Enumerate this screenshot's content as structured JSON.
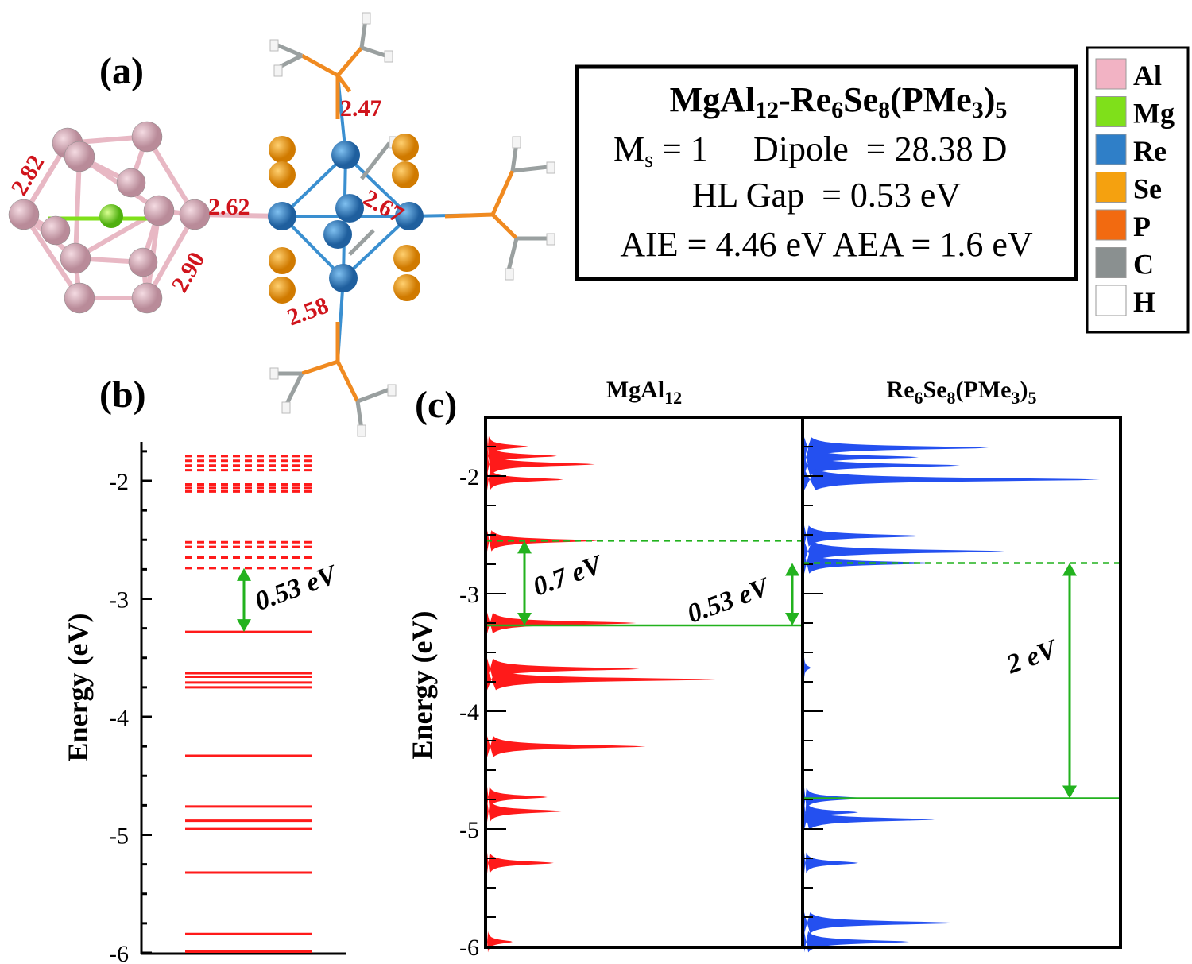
{
  "panel_labels": {
    "a": "(a)",
    "b": "(b)",
    "c": "(c)"
  },
  "bond_lengths": [
    "2.82",
    "2.62",
    "2.90",
    "2.47",
    "2.67",
    "2.58"
  ],
  "info_box": {
    "title": [
      {
        "t": "MgAl",
        "sub": false
      },
      {
        "t": "12",
        "sub": true
      },
      {
        "t": "-Re",
        "sub": false
      },
      {
        "t": "6",
        "sub": true
      },
      {
        "t": "Se",
        "sub": false
      },
      {
        "t": "8",
        "sub": true
      },
      {
        "t": "(PMe",
        "sub": false
      },
      {
        "t": "3",
        "sub": true
      },
      {
        "t": ")",
        "sub": false
      },
      {
        "t": "5",
        "sub": true
      }
    ],
    "ms_label": "M",
    "ms_sub": "s",
    "ms_value": " = 1",
    "dipole": "Dipole  = 28.38 D",
    "hl_gap": "HL Gap  = 0.53 eV",
    "aie_aea": "AIE = 4.46 eV AEA = 1.6 eV"
  },
  "legend": [
    {
      "label": "Al",
      "color": "#f2b3c4"
    },
    {
      "label": "Mg",
      "color": "#7fe01a"
    },
    {
      "label": "Re",
      "color": "#2f7fc8"
    },
    {
      "label": "Se",
      "color": "#f5a10f"
    },
    {
      "label": "P",
      "color": "#f26a10"
    },
    {
      "label": "C",
      "color": "#8a9090"
    },
    {
      "label": "H",
      "color": "#ffffff"
    }
  ],
  "colors": {
    "levels": "#ff1a1a",
    "dos_mgal12": "#ff1a1a",
    "dos_re6se8": "#2450f0",
    "gap_arrows": "#22b21e",
    "bond_labels": "#d0141c"
  },
  "chart_data": [
    {
      "type": "energy-level diagram",
      "panel": "(b)",
      "ylabel": "Energy (eV)",
      "ylim": [
        -6,
        -1.7
      ],
      "yticks": [
        "-2",
        "-3",
        "-4",
        "-5",
        "-6"
      ],
      "unoccupied_levels_dashed": [
        -1.79,
        -1.83,
        -1.87,
        -1.91,
        -2.03,
        -2.06,
        -2.09,
        -2.52,
        -2.56,
        -2.65,
        -2.74
      ],
      "occupied_levels_solid": [
        -3.28,
        -3.63,
        -3.66,
        -3.71,
        -3.75,
        -4.33,
        -4.76,
        -4.88,
        -4.95,
        -5.32,
        -5.84,
        -5.99
      ],
      "annotation": {
        "text": "0.53 eV",
        "from": -2.74,
        "to": -3.28
      }
    },
    {
      "type": "area",
      "panel": "(c)",
      "ylabel": "Energy (eV)",
      "ylim": [
        -6,
        -1.5
      ],
      "yticks": [
        "-2",
        "-3",
        "-4",
        "-5",
        "-6"
      ],
      "subplots": [
        {
          "title": [
            {
              "t": "MgAl",
              "sub": false
            },
            {
              "t": "12",
              "sub": true
            }
          ],
          "series_color": "#ff1a1a",
          "peaks": [
            {
              "energy": -1.75,
              "dos": 0.13
            },
            {
              "energy": -1.83,
              "dos": 0.22
            },
            {
              "energy": -1.9,
              "dos": 0.34
            },
            {
              "energy": -2.03,
              "dos": 0.24
            },
            {
              "energy": -2.55,
              "dos": 0.35
            },
            {
              "energy": -3.25,
              "dos": 0.47
            },
            {
              "energy": -3.64,
              "dos": 0.48
            },
            {
              "energy": -3.73,
              "dos": 0.72
            },
            {
              "energy": -4.3,
              "dos": 0.5
            },
            {
              "energy": -4.73,
              "dos": 0.19
            },
            {
              "energy": -4.85,
              "dos": 0.24
            },
            {
              "energy": -5.29,
              "dos": 0.21
            },
            {
              "energy": -5.96,
              "dos": 0.08
            }
          ],
          "lumo": -2.55,
          "homo": -3.27,
          "annotations": [
            {
              "text": "0.7 eV",
              "from": -2.55,
              "to": -3.27
            },
            {
              "text": "0.53 eV",
              "from": -2.74,
              "to": -3.27
            }
          ]
        },
        {
          "title": [
            {
              "t": "Re",
              "sub": false
            },
            {
              "t": "6",
              "sub": true
            },
            {
              "t": "Se",
              "sub": false
            },
            {
              "t": "8",
              "sub": true
            },
            {
              "t": "(PMe",
              "sub": false
            },
            {
              "t": "3",
              "sub": true
            },
            {
              "t": ")",
              "sub": false
            },
            {
              "t": "5",
              "sub": true
            }
          ],
          "series_color": "#2450f0",
          "peaks": [
            {
              "energy": -1.76,
              "dos": 0.58
            },
            {
              "energy": -1.84,
              "dos": 0.36
            },
            {
              "energy": -1.91,
              "dos": 0.49
            },
            {
              "energy": -2.03,
              "dos": 0.93
            },
            {
              "energy": -2.51,
              "dos": 0.37
            },
            {
              "energy": -2.64,
              "dos": 0.63
            },
            {
              "energy": -2.74,
              "dos": 0.41
            },
            {
              "energy": -3.63,
              "dos": 0.02
            },
            {
              "energy": -4.74,
              "dos": 0.19
            },
            {
              "energy": -4.86,
              "dos": 0.17
            },
            {
              "energy": -4.92,
              "dos": 0.41
            },
            {
              "energy": -5.29,
              "dos": 0.17
            },
            {
              "energy": -5.8,
              "dos": 0.48
            },
            {
              "energy": -5.96,
              "dos": 0.33
            }
          ],
          "lumo": -2.74,
          "homo": -4.74,
          "annotations": [
            {
              "text": "2 eV",
              "from": -2.74,
              "to": -4.74
            }
          ]
        }
      ]
    }
  ]
}
